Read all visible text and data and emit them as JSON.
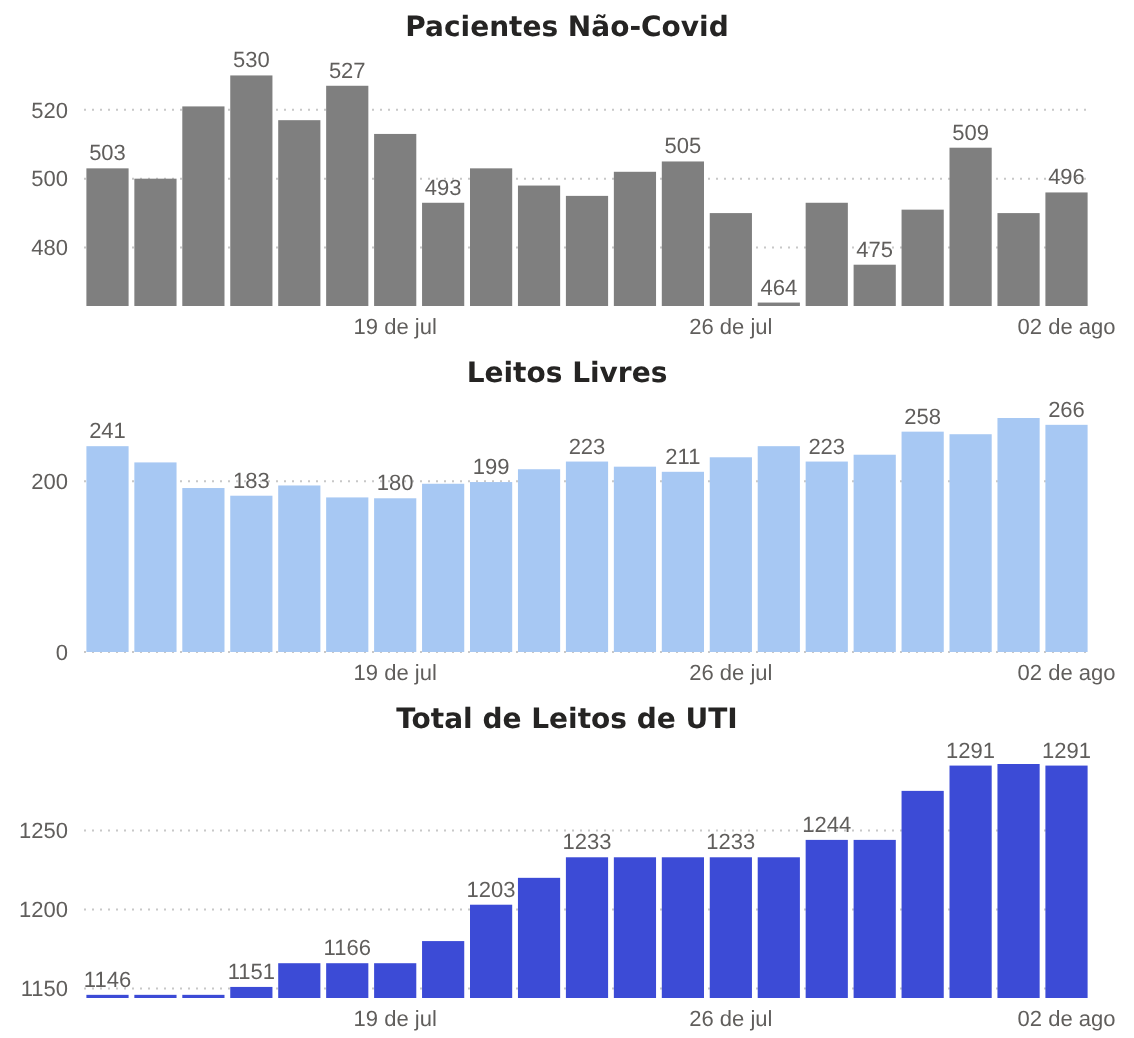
{
  "chart_data": [
    {
      "type": "bar",
      "title": "Pacientes Não-Covid",
      "categories": [
        null,
        null,
        null,
        null,
        null,
        null,
        "19 de jul",
        null,
        null,
        null,
        null,
        null,
        null,
        "26 de jul",
        null,
        null,
        null,
        null,
        null,
        null,
        "02 de ago"
      ],
      "color": "#7f7f7f",
      "values": [
        503,
        500,
        521,
        530,
        517,
        527,
        513,
        493,
        503,
        498,
        495,
        502,
        505,
        490,
        464,
        493,
        475,
        491,
        509,
        490,
        496
      ],
      "value_labels": [
        "503",
        null,
        null,
        "530",
        null,
        "527",
        null,
        "493",
        null,
        null,
        null,
        null,
        "505",
        null,
        "464",
        null,
        "475",
        null,
        "509",
        null,
        "496"
      ],
      "ylim": [
        463,
        531
      ],
      "yticks": [
        480,
        500,
        520
      ],
      "grid": "y"
    },
    {
      "type": "bar",
      "title": "Leitos Livres",
      "categories": [
        null,
        null,
        null,
        null,
        null,
        null,
        "19 de jul",
        null,
        null,
        null,
        null,
        null,
        null,
        "26 de jul",
        null,
        null,
        null,
        null,
        null,
        null,
        "02 de ago"
      ],
      "color": "#a7c8f3",
      "values": [
        241,
        222,
        192,
        183,
        195,
        181,
        180,
        197,
        199,
        214,
        223,
        217,
        211,
        228,
        241,
        223,
        231,
        258,
        255,
        274,
        266
      ],
      "value_labels": [
        "241",
        null,
        null,
        "183",
        null,
        null,
        "180",
        null,
        "199",
        null,
        "223",
        null,
        "211",
        null,
        null,
        "223",
        null,
        "258",
        null,
        null,
        "266"
      ],
      "ylim": [
        0,
        274
      ],
      "yticks": [
        0,
        200
      ],
      "grid": "y"
    },
    {
      "type": "bar",
      "title": "Total de Leitos de UTI",
      "categories": [
        null,
        null,
        null,
        null,
        null,
        null,
        "19 de jul",
        null,
        null,
        null,
        null,
        null,
        null,
        "26 de jul",
        null,
        null,
        null,
        null,
        null,
        null,
        "02 de ago"
      ],
      "color": "#3c4bd6",
      "values": [
        1146,
        1146,
        1146,
        1151,
        1166,
        1166,
        1166,
        1180,
        1203,
        1220,
        1233,
        1233,
        1233,
        1233,
        1233,
        1244,
        1244,
        1275,
        1291,
        1292,
        1291
      ],
      "value_labels": [
        "1146",
        null,
        null,
        "1151",
        null,
        "1166",
        null,
        null,
        "1203",
        null,
        "1233",
        null,
        null,
        "1233",
        null,
        "1244",
        null,
        null,
        "1291",
        null,
        "1291"
      ],
      "ylim": [
        1144,
        1292
      ],
      "yticks": [
        1150,
        1200,
        1250
      ],
      "grid": "y"
    }
  ]
}
